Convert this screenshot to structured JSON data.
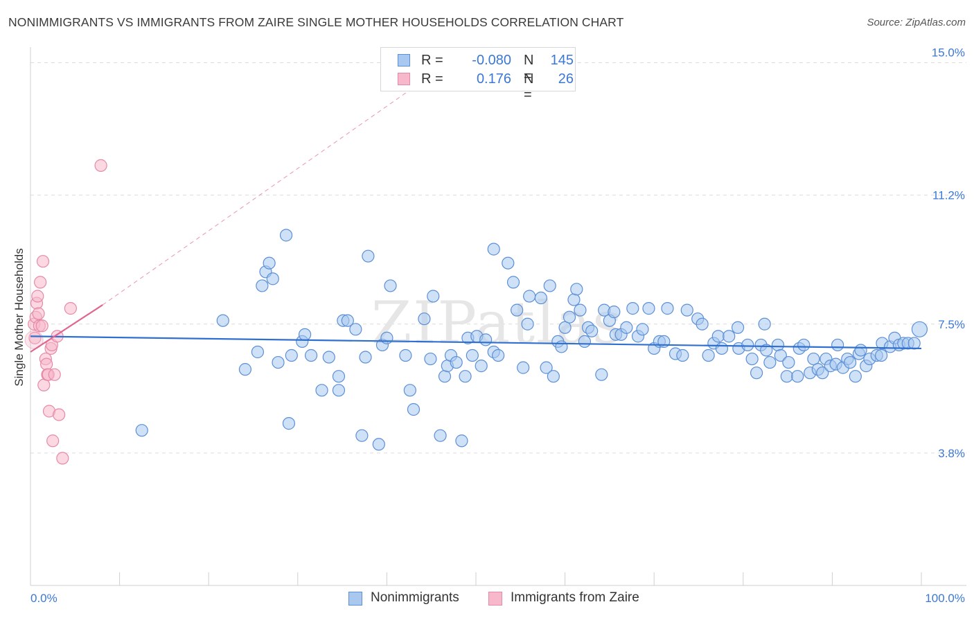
{
  "title": "NONIMMIGRANTS VS IMMIGRANTS FROM ZAIRE SINGLE MOTHER HOUSEHOLDS CORRELATION CHART",
  "source": "Source: ZipAtlas.com",
  "watermark": "ZIPatlas",
  "colors": {
    "blue_fill": "#a8c8f0",
    "blue_stroke": "#5b8fd6",
    "blue_line": "#2f6fcf",
    "pink_fill": "#f7b8cb",
    "pink_stroke": "#e58aa6",
    "pink_line": "#e0668e",
    "grid": "#dcdcdc",
    "tick_text": "#3b78d6"
  },
  "legend": {
    "rows": [
      {
        "r_label": "R =",
        "r_value": "-0.080",
        "n_label": "N =",
        "n_value": "145"
      },
      {
        "r_label": "R =",
        "r_value": "0.176",
        "n_label": "N =",
        "n_value": "26"
      }
    ]
  },
  "bottom_legend": [
    "Nonimmigrants",
    "Immigrants from Zaire"
  ],
  "chart_data": {
    "type": "scatter",
    "title": "NONIMMIGRANTS VS IMMIGRANTS FROM ZAIRE SINGLE MOTHER HOUSEHOLDS CORRELATION CHART",
    "xlabel": "",
    "ylabel": "Single Mother Households",
    "xlim": [
      0,
      100
    ],
    "ylim": [
      0,
      15.5
    ],
    "x_tick_labels": [
      "0.0%",
      "100.0%"
    ],
    "y_ticks": [
      3.8,
      7.5,
      11.2,
      15.0
    ],
    "y_tick_labels": [
      "3.8%",
      "7.5%",
      "11.2%",
      "15.0%"
    ],
    "series": [
      {
        "name": "Nonimmigrants",
        "color": "blue",
        "r": -0.08,
        "n": 145,
        "trend": {
          "x": [
            0,
            100
          ],
          "y": [
            7.15,
            6.8
          ],
          "dashed_extension": false
        },
        "points": [
          [
            12.5,
            4.45
          ],
          [
            21.6,
            7.6
          ],
          [
            24.1,
            6.2
          ],
          [
            25.5,
            6.7
          ],
          [
            26.0,
            8.6
          ],
          [
            26.4,
            9.0
          ],
          [
            26.8,
            9.25
          ],
          [
            27.2,
            8.8
          ],
          [
            27.8,
            6.4
          ],
          [
            28.7,
            10.05
          ],
          [
            29.0,
            4.65
          ],
          [
            29.3,
            6.6
          ],
          [
            30.5,
            7.0
          ],
          [
            30.8,
            7.2
          ],
          [
            31.5,
            6.6
          ],
          [
            32.7,
            5.6
          ],
          [
            33.5,
            6.55
          ],
          [
            34.6,
            6.0
          ],
          [
            34.6,
            5.6
          ],
          [
            35.1,
            7.6
          ],
          [
            35.6,
            7.6
          ],
          [
            36.5,
            7.35
          ],
          [
            37.2,
            4.3
          ],
          [
            37.6,
            6.55
          ],
          [
            37.9,
            9.45
          ],
          [
            39.1,
            4.05
          ],
          [
            39.5,
            6.9
          ],
          [
            40.0,
            7.1
          ],
          [
            40.4,
            8.6
          ],
          [
            42.1,
            6.6
          ],
          [
            42.6,
            5.6
          ],
          [
            43.0,
            5.05
          ],
          [
            44.2,
            7.65
          ],
          [
            44.9,
            6.5
          ],
          [
            45.2,
            8.3
          ],
          [
            46.0,
            4.3
          ],
          [
            46.5,
            6.0
          ],
          [
            46.8,
            6.3
          ],
          [
            47.2,
            6.6
          ],
          [
            47.8,
            6.4
          ],
          [
            48.4,
            4.15
          ],
          [
            48.8,
            6.0
          ],
          [
            49.1,
            7.1
          ],
          [
            49.6,
            6.6
          ],
          [
            50.1,
            7.15
          ],
          [
            50.6,
            6.3
          ],
          [
            51.1,
            7.05
          ],
          [
            52.0,
            6.7
          ],
          [
            52.5,
            6.6
          ],
          [
            52.0,
            9.65
          ],
          [
            53.6,
            9.25
          ],
          [
            54.2,
            8.7
          ],
          [
            54.6,
            7.9
          ],
          [
            55.3,
            6.25
          ],
          [
            55.8,
            7.5
          ],
          [
            56.0,
            8.3
          ],
          [
            57.3,
            8.25
          ],
          [
            57.9,
            6.25
          ],
          [
            58.3,
            8.6
          ],
          [
            58.7,
            6.0
          ],
          [
            59.2,
            7.0
          ],
          [
            59.6,
            6.85
          ],
          [
            60.0,
            7.4
          ],
          [
            60.5,
            7.7
          ],
          [
            61.0,
            8.2
          ],
          [
            61.3,
            8.5
          ],
          [
            61.7,
            7.9
          ],
          [
            62.2,
            7.0
          ],
          [
            62.6,
            7.4
          ],
          [
            63.0,
            7.3
          ],
          [
            64.1,
            6.05
          ],
          [
            64.4,
            7.9
          ],
          [
            65.0,
            7.6
          ],
          [
            65.5,
            7.85
          ],
          [
            65.7,
            7.2
          ],
          [
            66.3,
            7.2
          ],
          [
            66.9,
            7.4
          ],
          [
            67.6,
            7.95
          ],
          [
            68.2,
            7.15
          ],
          [
            68.7,
            7.35
          ],
          [
            69.4,
            7.95
          ],
          [
            70.0,
            6.8
          ],
          [
            70.6,
            7.0
          ],
          [
            71.1,
            7.0
          ],
          [
            71.5,
            7.95
          ],
          [
            72.4,
            6.65
          ],
          [
            73.2,
            6.6
          ],
          [
            73.7,
            7.9
          ],
          [
            74.9,
            7.65
          ],
          [
            75.4,
            7.5
          ],
          [
            76.1,
            6.6
          ],
          [
            76.7,
            6.95
          ],
          [
            77.2,
            7.15
          ],
          [
            77.6,
            6.8
          ],
          [
            78.4,
            7.15
          ],
          [
            79.4,
            7.4
          ],
          [
            79.5,
            6.8
          ],
          [
            80.5,
            6.9
          ],
          [
            81.0,
            6.5
          ],
          [
            81.5,
            6.1
          ],
          [
            82.0,
            6.9
          ],
          [
            82.4,
            7.5
          ],
          [
            82.6,
            6.75
          ],
          [
            83.0,
            6.4
          ],
          [
            83.9,
            6.9
          ],
          [
            84.2,
            6.6
          ],
          [
            84.9,
            6.0
          ],
          [
            85.1,
            6.4
          ],
          [
            86.1,
            6.0
          ],
          [
            86.3,
            6.8
          ],
          [
            86.8,
            6.9
          ],
          [
            87.5,
            6.1
          ],
          [
            87.9,
            6.5
          ],
          [
            88.4,
            6.2
          ],
          [
            88.9,
            6.1
          ],
          [
            89.3,
            6.5
          ],
          [
            89.8,
            6.3
          ],
          [
            90.4,
            6.35
          ],
          [
            90.6,
            6.9
          ],
          [
            91.2,
            6.25
          ],
          [
            91.7,
            6.5
          ],
          [
            92.0,
            6.4
          ],
          [
            92.6,
            6.0
          ],
          [
            93.0,
            6.65
          ],
          [
            93.2,
            6.75
          ],
          [
            93.8,
            6.3
          ],
          [
            94.2,
            6.5
          ],
          [
            95.0,
            6.6
          ],
          [
            95.5,
            6.6
          ],
          [
            95.6,
            6.95
          ],
          [
            96.5,
            6.85
          ],
          [
            97.0,
            7.1
          ],
          [
            97.5,
            6.9
          ],
          [
            98.0,
            6.95
          ],
          [
            98.5,
            6.95
          ],
          [
            99.2,
            6.95
          ],
          [
            99.8,
            7.35
          ]
        ]
      },
      {
        "name": "Immigrants from Zaire",
        "color": "pink",
        "r": 0.176,
        "n": 26,
        "trend": {
          "x": [
            0,
            8.1
          ],
          "y": [
            6.7,
            8.05
          ],
          "dashed_extension": {
            "x": [
              8.1,
              42.5
            ],
            "y": [
              8.05,
              14.2
            ]
          }
        },
        "points": [
          [
            0.4,
            7.5
          ],
          [
            0.5,
            7.1
          ],
          [
            0.6,
            7.7
          ],
          [
            0.7,
            8.1
          ],
          [
            0.8,
            8.3
          ],
          [
            0.9,
            7.8
          ],
          [
            1.0,
            7.45
          ],
          [
            1.1,
            8.7
          ],
          [
            1.3,
            7.45
          ],
          [
            1.4,
            9.3
          ],
          [
            1.5,
            5.75
          ],
          [
            1.7,
            6.5
          ],
          [
            1.8,
            6.35
          ],
          [
            1.9,
            6.05
          ],
          [
            2.0,
            6.05
          ],
          [
            2.1,
            5.0
          ],
          [
            2.3,
            6.8
          ],
          [
            2.4,
            6.9
          ],
          [
            2.5,
            4.15
          ],
          [
            2.7,
            6.05
          ],
          [
            3.0,
            7.15
          ],
          [
            3.2,
            4.9
          ],
          [
            3.6,
            3.65
          ],
          [
            4.5,
            7.95
          ],
          [
            7.9,
            12.05
          ]
        ]
      }
    ]
  }
}
